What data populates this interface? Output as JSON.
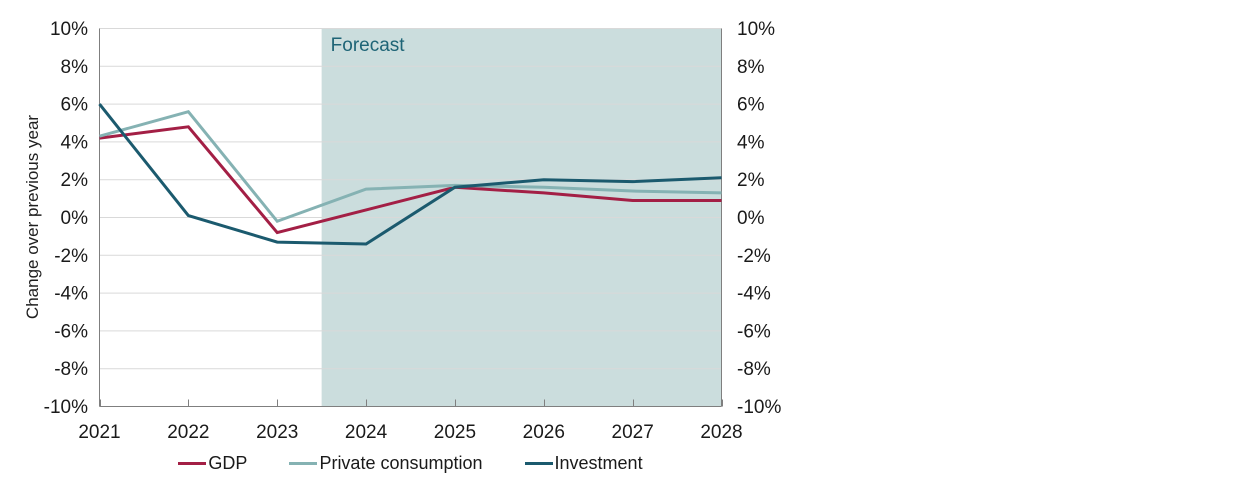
{
  "chart_data": {
    "type": "line",
    "title": "",
    "ylabel": "Change over previous year",
    "xlabel": "",
    "categories": [
      2021,
      2022,
      2023,
      2024,
      2025,
      2026,
      2027,
      2028
    ],
    "series": [
      {
        "name": "GDP",
        "color": "#a31f45",
        "values": [
          4.2,
          4.8,
          -0.8,
          0.4,
          1.6,
          1.3,
          0.9,
          0.9
        ]
      },
      {
        "name": "Private consumption",
        "color": "#85b2b3",
        "values": [
          4.3,
          5.6,
          -0.2,
          1.5,
          1.7,
          1.6,
          1.4,
          1.3
        ]
      },
      {
        "name": "Investment",
        "color": "#1b5a6e",
        "values": [
          6.0,
          0.1,
          -1.3,
          -1.4,
          1.6,
          2.0,
          1.9,
          2.1
        ]
      }
    ],
    "ylim": [
      -10,
      10
    ],
    "ytick_step": 2,
    "ytick_suffix": "%",
    "ytick_labels": [
      "10%",
      "8%",
      "6%",
      "4%",
      "2%",
      "0%",
      "-2%",
      "-4%",
      "-6%",
      "-8%",
      "-10%"
    ],
    "y_axis_mirrored": true,
    "grid": "horizontal",
    "grid_color": "#d9d9d9",
    "axis_color": "#7f7f7f",
    "text_color": "#1a1a1a",
    "legend_position": "bottom",
    "forecast": {
      "label": "Forecast",
      "start": 2023.5,
      "band_color": "#cbdddd",
      "label_color": "#1e6476"
    }
  }
}
